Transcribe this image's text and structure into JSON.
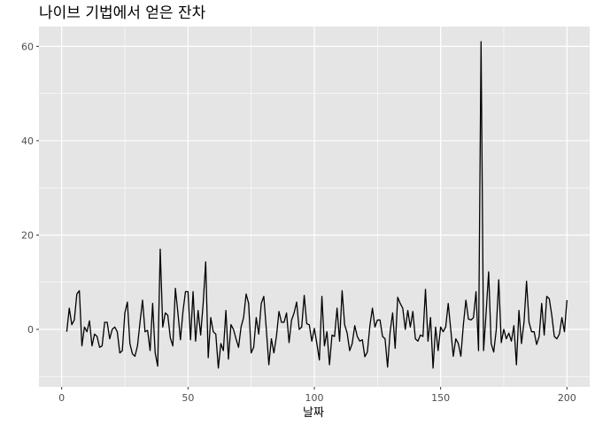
{
  "chart_data": {
    "type": "line",
    "title": "나이브 기법에서 얻은 잔차",
    "xlabel": "날짜",
    "ylabel": "",
    "xlim": [
      -9,
      209
    ],
    "ylim": [
      -12.2,
      64.2
    ],
    "xticks": [
      0,
      50,
      100,
      150,
      200
    ],
    "yticks": [
      0,
      20,
      40,
      60
    ],
    "x_minor": [
      25,
      75,
      125,
      175
    ],
    "y_minor": [
      -10,
      10,
      30,
      50
    ],
    "grid": true,
    "background": "#e5e5e5",
    "gridline_color": "#ffffff",
    "line_color": "#000000",
    "series": [
      {
        "x_start": 2,
        "x_step": 1,
        "values": [
          -0.5,
          4.5,
          1,
          2,
          7.5,
          8.2,
          -3.5,
          0.5,
          -0.5,
          1.8,
          -3.5,
          -1,
          -1.5,
          -3.8,
          -3.5,
          1.5,
          1.5,
          -2,
          0,
          0.5,
          -0.5,
          -5,
          -4.5,
          3.5,
          5.8,
          -3,
          -5.2,
          -5.7,
          -3.5,
          1.5,
          6.2,
          -0.5,
          -0.2,
          -4.5,
          5.5,
          -5,
          -7.8,
          17,
          0.5,
          3.5,
          3,
          -1.8,
          -3.5,
          8.7,
          3.5,
          -2.2,
          3.8,
          8,
          8,
          -2.2,
          8,
          -2.5,
          4,
          -1.2,
          5.5,
          14.3,
          -6,
          2.5,
          -0.5,
          -1,
          -8.2,
          -3,
          -4.5,
          4,
          -6.3,
          1,
          0,
          -2,
          -3.8,
          0.5,
          2.5,
          7.5,
          5.5,
          -5,
          -3.8,
          2.5,
          -1,
          5.5,
          7,
          0,
          -7.5,
          -2,
          -5,
          -1.5,
          3.8,
          1.5,
          1.5,
          3.5,
          -2.8,
          2,
          3.5,
          5.8,
          0,
          0.5,
          7.2,
          1.2,
          1,
          -2.5,
          0.2,
          -3,
          -6.5,
          7,
          -3.5,
          -0.5,
          -7.5,
          -1.2,
          -1.5,
          4.5,
          -2.5,
          8.2,
          1,
          -0.8,
          -4.5,
          -3,
          0.8,
          -1.5,
          -2.5,
          -2.2,
          -5.8,
          -4.8,
          0.8,
          4.5,
          0.5,
          2,
          2,
          -1.5,
          -2,
          -8,
          -0.5,
          3.5,
          -4,
          6.8,
          5.5,
          4.5,
          0,
          4,
          0.5,
          3.8,
          -2,
          -2.5,
          -1.2,
          -1.5,
          8.5,
          -2.5,
          2.5,
          -8.2,
          0.5,
          -4.5,
          0.5,
          -0.5,
          0.5,
          5.5,
          0,
          -5.7,
          -2,
          -3,
          -5.7,
          1,
          6.2,
          2.2,
          2,
          2.5,
          8,
          -4.5,
          61,
          -4.5,
          3.5,
          12.2,
          -3,
          -4.8,
          -0.2,
          10.5,
          -2.8,
          0,
          -2,
          -0.8,
          -2.5,
          0.8,
          -7.5,
          4,
          -3,
          1.5,
          10.2,
          1.5,
          -0.5,
          -0.5,
          -3.2,
          -1.5,
          5.5,
          -1.2,
          7,
          6.5,
          3,
          -1.5,
          -2,
          -1,
          2.5,
          -0.5,
          6.2
        ]
      }
    ]
  }
}
